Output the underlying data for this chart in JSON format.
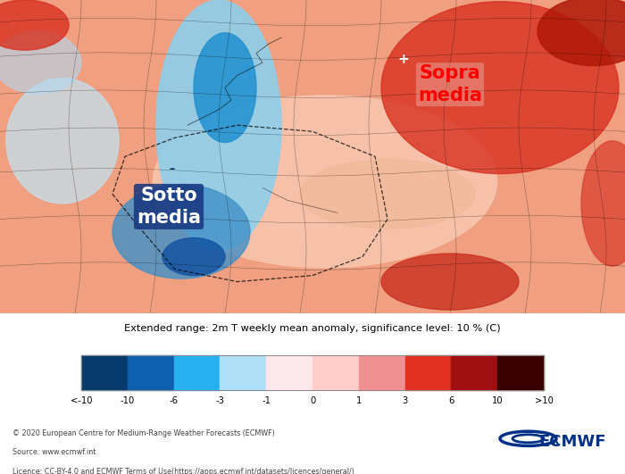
{
  "title": "Extended range: 2m T weekly mean anomaly, significance level: 10 % (C)",
  "colorbar_ticks": [
    "<-10",
    "-10",
    "-6",
    "-3",
    "-1",
    "0",
    "1",
    "3",
    "6",
    "10",
    ">10"
  ],
  "colorbar_colors": [
    "#093a6e",
    "#1060b0",
    "#29b0f0",
    "#b0dff8",
    "#fce8ec",
    "#ffcccc",
    "#f09090",
    "#e03020",
    "#a01010",
    "#3a0000"
  ],
  "label_sotto": "Sotto\nmedia",
  "label_sopra": "Sopra\nmedia",
  "label_sotto_color": "#ffffff",
  "label_sopra_color": "#ff0000",
  "footer_line1": "© 2020 European Centre for Medium-Range Weather Forecasts (ECMWF)",
  "footer_line2": "Source: www.ecmwf.int",
  "footer_line3": "Licence: CC-BY-4.0 and ECMWF Terms of Use(https://apps.ecmwf.int/datasets/licences/general/)",
  "bg_color": "#ffffff",
  "ecmwf_logo_color": "#003087"
}
